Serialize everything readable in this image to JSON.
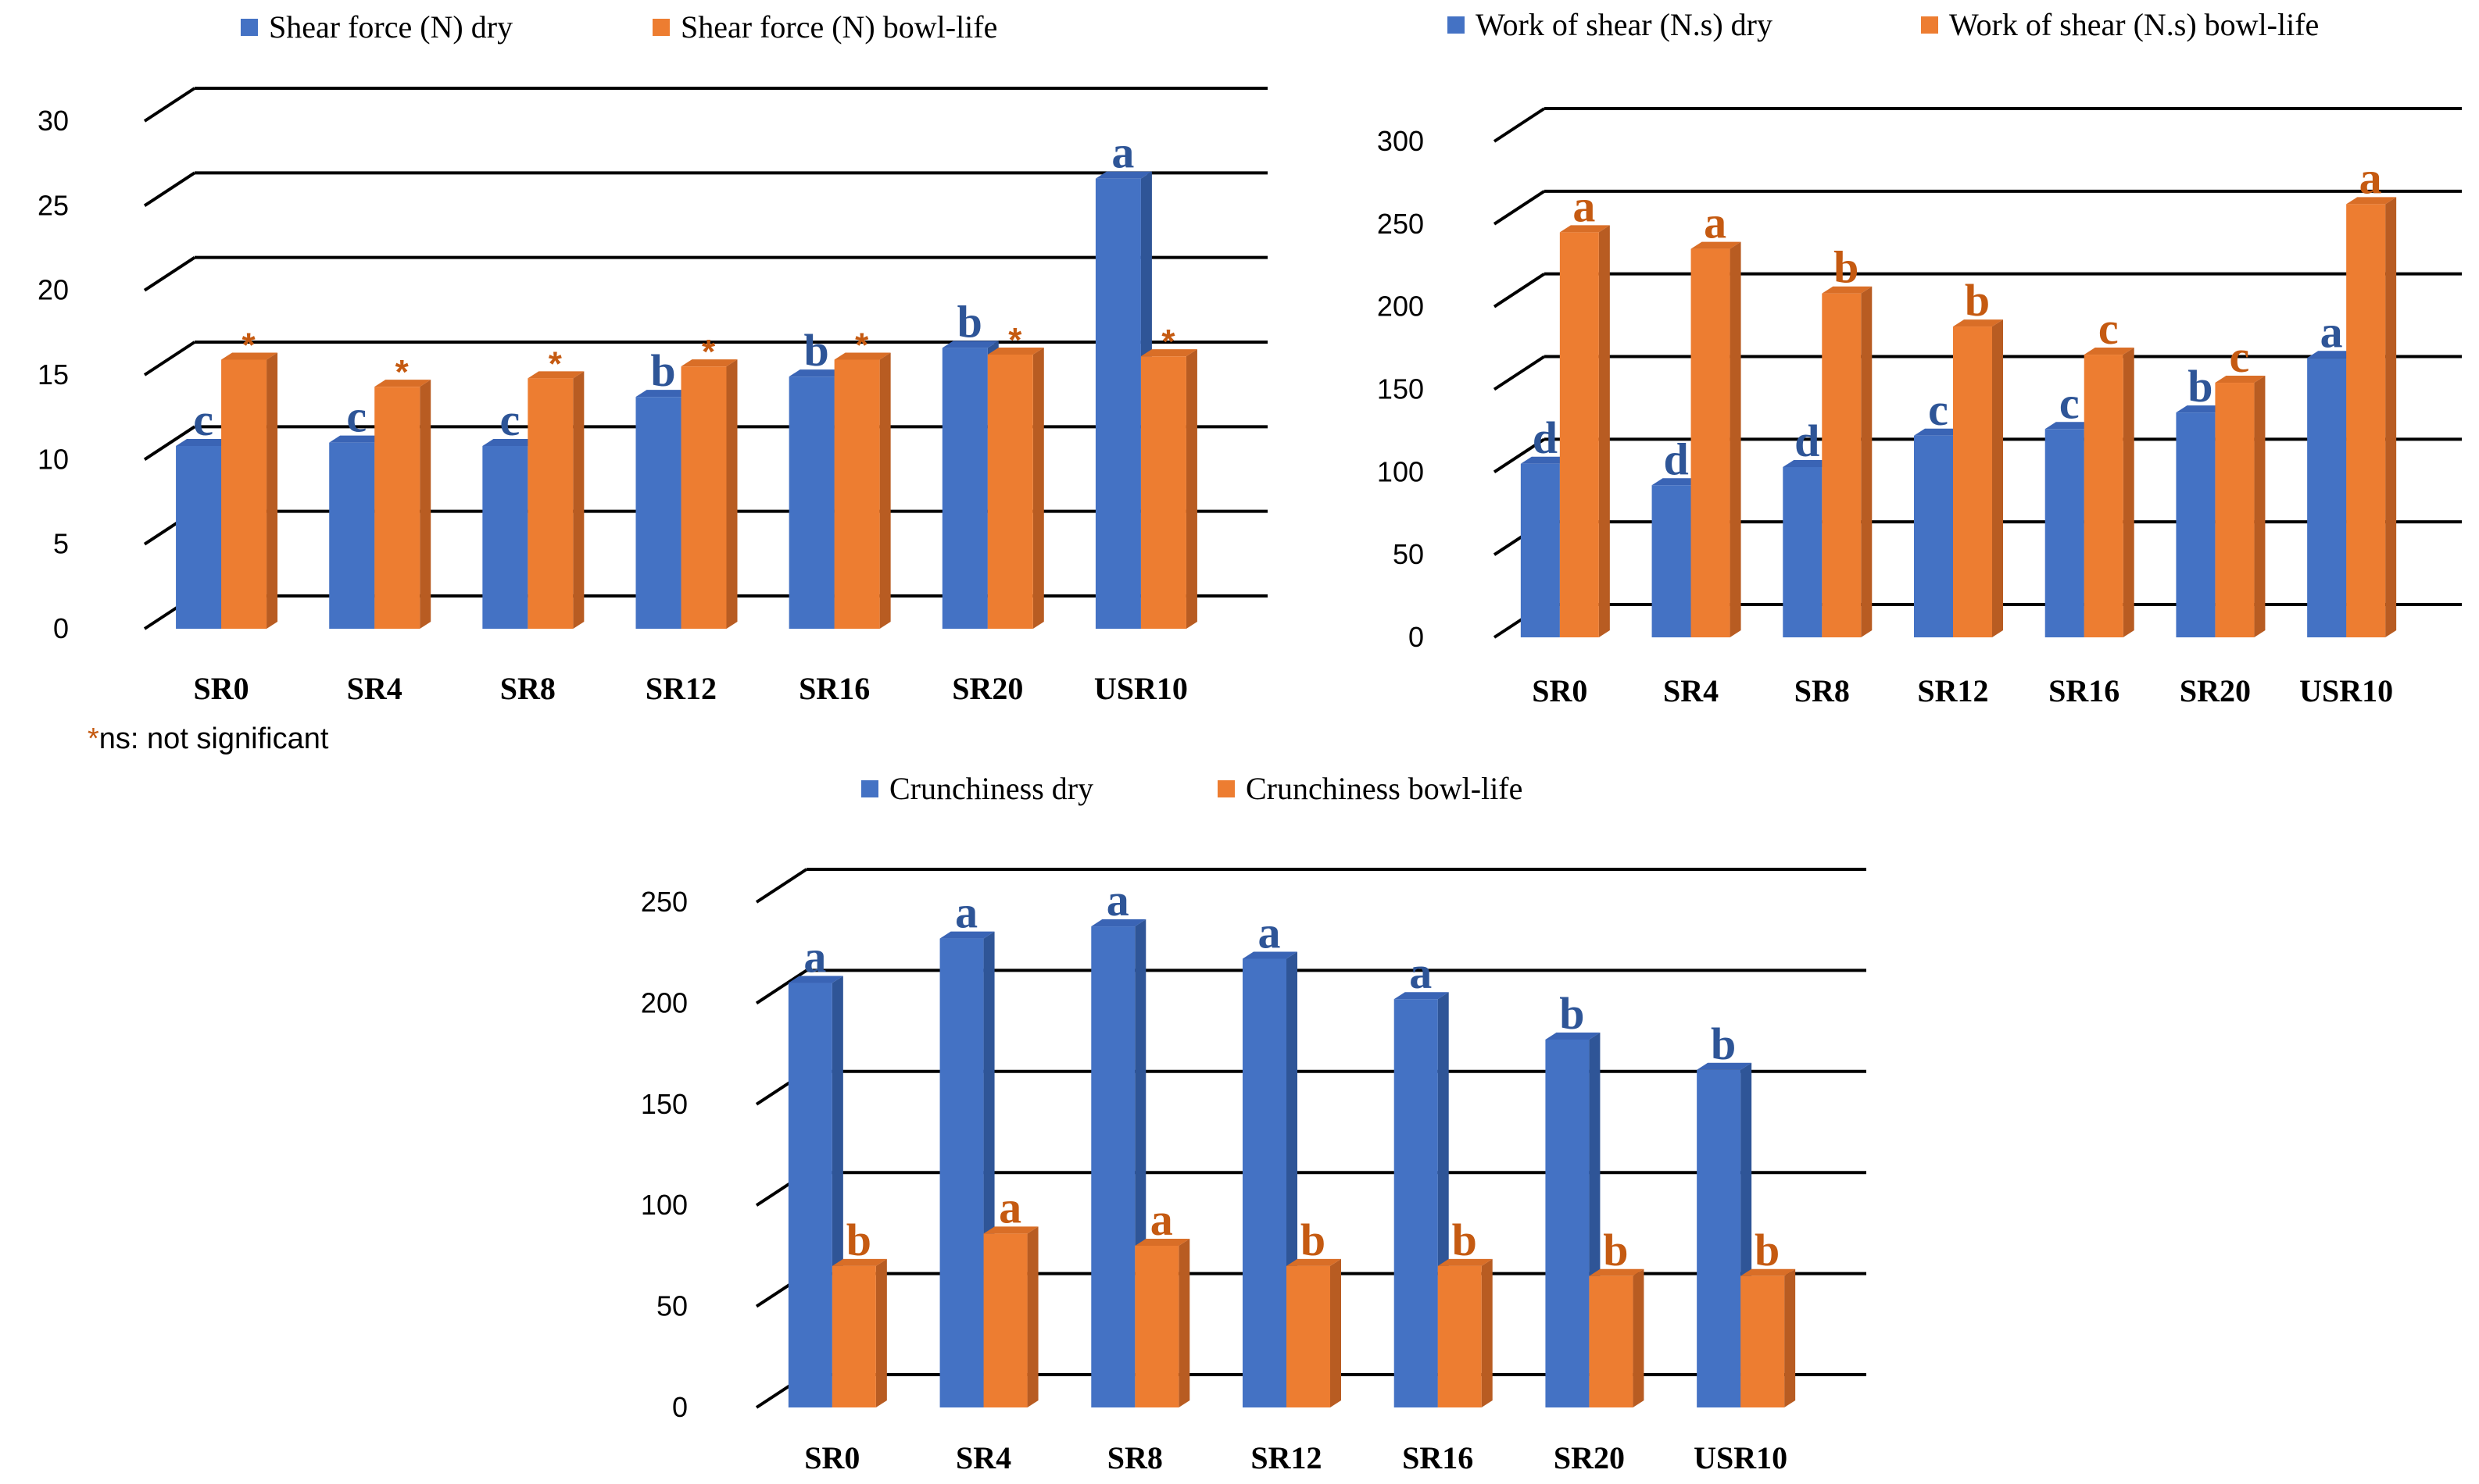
{
  "colors": {
    "dry": "#4472c4",
    "dry_side": "#2f5597",
    "dry_top": "#3a64b5",
    "wet": "#ed7d31",
    "wet_side": "#b85c22",
    "wet_top": "#d96e27",
    "dry_letter": "#2e5597",
    "wet_letter": "#c55a11",
    "grid": "#000000"
  },
  "chart_data": [
    {
      "type": "bar",
      "categories": [
        "SR0",
        "SR4",
        "SR8",
        "SR12",
        "SR16",
        "SR20",
        "USR10"
      ],
      "ylim": [
        0,
        30
      ],
      "yticks": [
        0,
        5,
        10,
        15,
        20,
        25,
        30
      ],
      "series": [
        {
          "name": "Shear force  (N) dry",
          "values": [
            10.8,
            11.0,
            10.8,
            13.7,
            14.9,
            16.6,
            26.6
          ],
          "labels": [
            "c",
            "c",
            "c",
            "b",
            "b",
            "b",
            "a"
          ]
        },
        {
          "name": "Shear force (N) bowl-life",
          "values": [
            15.9,
            14.3,
            14.8,
            15.5,
            15.9,
            16.2,
            16.1
          ],
          "labels": [
            "*",
            "*",
            "*",
            "*",
            "*",
            "*",
            "*"
          ]
        }
      ],
      "footnote": {
        "symbol": "*",
        "text": "ns: not significant"
      }
    },
    {
      "type": "bar",
      "categories": [
        "SR0",
        "SR4",
        "SR8",
        "SR12",
        "SR16",
        "SR20",
        "USR10"
      ],
      "ylim": [
        0,
        300
      ],
      "yticks": [
        0,
        50,
        100,
        150,
        200,
        250,
        300
      ],
      "series": [
        {
          "name": "Work of shear (N.s) dry",
          "values": [
            105,
            92,
            103,
            122,
            126,
            136,
            169
          ],
          "labels": [
            "d",
            "d",
            "d",
            "c",
            "c",
            "b",
            "a"
          ]
        },
        {
          "name": "Work of shear (N.s) bowl-life",
          "values": [
            245,
            235,
            208,
            188,
            171,
            154,
            262
          ],
          "labels": [
            "a",
            "a",
            "b",
            "b",
            "c",
            "c",
            "a"
          ]
        }
      ]
    },
    {
      "type": "bar",
      "categories": [
        "SR0",
        "SR4",
        "SR8",
        "SR12",
        "SR16",
        "SR20",
        "USR10"
      ],
      "ylim": [
        0,
        250
      ],
      "yticks": [
        0,
        50,
        100,
        150,
        200,
        250
      ],
      "series": [
        {
          "name": "Crunchiness dry",
          "values": [
            210,
            232,
            238,
            222,
            202,
            182,
            167
          ],
          "labels": [
            "a",
            "a",
            "a",
            "a",
            "a",
            "b",
            "b"
          ]
        },
        {
          "name": "Crunchiness bowl-life",
          "values": [
            70,
            86,
            80,
            70,
            70,
            65,
            65
          ],
          "labels": [
            "b",
            "a",
            "a",
            "b",
            "b",
            "b",
            "b"
          ]
        }
      ]
    }
  ]
}
